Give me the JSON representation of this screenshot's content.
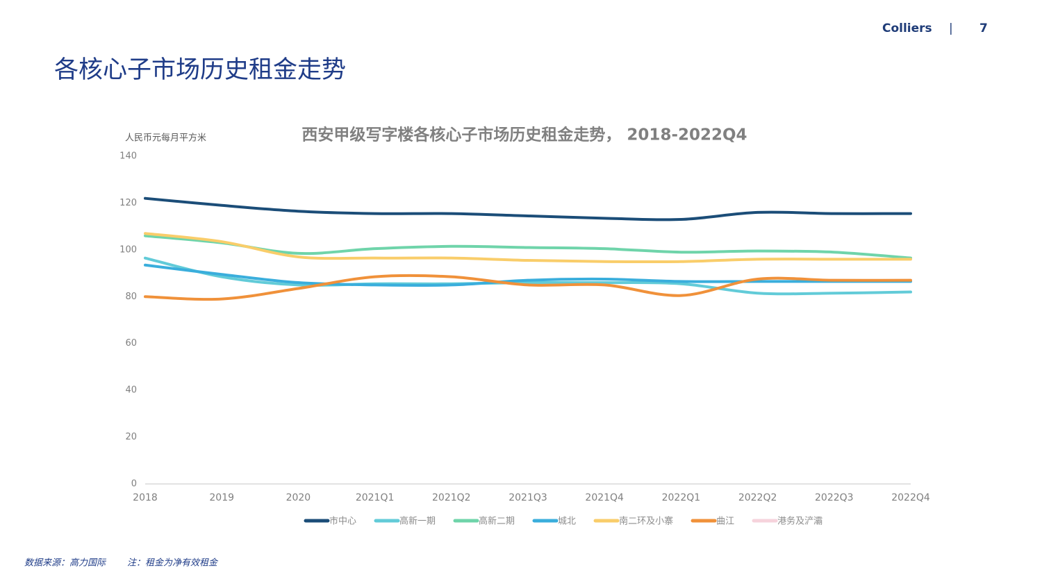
{
  "header": {
    "brand": "Colliers",
    "separator": "|",
    "page": "7"
  },
  "title": "各核心子市场历史租金走势",
  "footer": {
    "source": "数据来源：高力国际",
    "note": "注：租金为净有效租金"
  },
  "chart_data": {
    "type": "line",
    "title": "西安甲级写字楼各核心子市场历史租金走势， 2018-2022Q4",
    "y_label": "人民币元每月平方米",
    "categories": [
      "2018",
      "2019",
      "2020",
      "2021Q1",
      "2021Q2",
      "2021Q3",
      "2021Q4",
      "2022Q1",
      "2022Q2",
      "2022Q3",
      "2022Q4"
    ],
    "series": [
      {
        "name": "市中心",
        "color": "#1b4d78",
        "values": [
          122,
          119,
          116.5,
          115.5,
          115.5,
          114.5,
          113.5,
          113,
          116,
          115.5,
          115.5
        ]
      },
      {
        "name": "高新一期",
        "color": "#62cbd8",
        "values": [
          96.5,
          88.5,
          85,
          85.5,
          85.5,
          86,
          86,
          85.5,
          81.5,
          81.5,
          82
        ]
      },
      {
        "name": "高新二期",
        "color": "#6fd4aa",
        "values": [
          106,
          103,
          98.5,
          100.5,
          101.5,
          101,
          100.5,
          99,
          99.5,
          99,
          96.5
        ]
      },
      {
        "name": "城北",
        "color": "#3aaedc",
        "values": [
          93.5,
          89.5,
          86,
          85,
          85,
          87,
          87.5,
          86.5,
          86.5,
          86.5,
          86.5
        ]
      },
      {
        "name": "南二环及小寨",
        "color": "#f9cd6a",
        "values": [
          107,
          103.5,
          97,
          96.5,
          96.5,
          95.5,
          95,
          95,
          96,
          96,
          96
        ]
      },
      {
        "name": "曲江",
        "color": "#f0913a",
        "values": [
          80,
          79,
          83.5,
          88.5,
          88.5,
          85,
          85,
          80.5,
          87.5,
          87,
          87
        ]
      },
      {
        "name": "港务及浐灞",
        "color": "#f6d3dc",
        "values": [
          null,
          null,
          null,
          null,
          null,
          null,
          null,
          null,
          null,
          null,
          null
        ]
      }
    ],
    "ylim": [
      0,
      140
    ],
    "yticks": [
      0,
      20,
      40,
      60,
      80,
      100,
      120,
      140
    ],
    "grid": false
  }
}
